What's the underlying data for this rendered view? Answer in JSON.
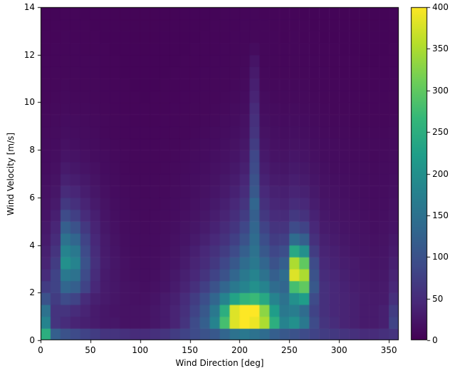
{
  "figure": {
    "background": "#ffffff",
    "axes_color": "#000000"
  },
  "chart_data": {
    "type": "heatmap",
    "title": "",
    "xlabel": "Wind Direction [deg]",
    "ylabel": "Wind Velocity [m/s]",
    "x_range": [
      0,
      360
    ],
    "y_range": [
      0,
      14
    ],
    "x_bin_size_deg": 10,
    "y_bin_size_ms": 0.5,
    "x_tick_labels": [
      0,
      50,
      100,
      150,
      200,
      250,
      300,
      350
    ],
    "y_tick_labels": [
      0,
      2,
      4,
      6,
      8,
      10,
      12,
      14
    ],
    "grid": false,
    "colormap": "viridis",
    "colormap_stops": [
      "#440154",
      "#482878",
      "#3e4a89",
      "#31688e",
      "#26828e",
      "#1f9e89",
      "#35b779",
      "#6ece58",
      "#b5de2b",
      "#fde725"
    ],
    "colorbar": {
      "position": "right",
      "range": [
        0,
        400
      ],
      "ticks": [
        0,
        50,
        100,
        150,
        200,
        250,
        300,
        350,
        400
      ]
    },
    "values_rows_bottom_to_top": [
      [
        250,
        120,
        100,
        90,
        80,
        70,
        60,
        60,
        55,
        50,
        50,
        55,
        60,
        70,
        80,
        90,
        100,
        110,
        130,
        150,
        160,
        150,
        140,
        120,
        110,
        100,
        90,
        80,
        70,
        65,
        60,
        55,
        50,
        50,
        55,
        60
      ],
      [
        180,
        60,
        50,
        40,
        35,
        30,
        25,
        25,
        20,
        20,
        20,
        25,
        30,
        40,
        60,
        90,
        120,
        180,
        280,
        380,
        400,
        390,
        350,
        250,
        180,
        200,
        160,
        90,
        60,
        50,
        40,
        35,
        30,
        30,
        35,
        80
      ],
      [
        150,
        60,
        60,
        50,
        40,
        30,
        25,
        22,
        20,
        20,
        20,
        25,
        30,
        40,
        55,
        80,
        110,
        160,
        250,
        380,
        400,
        400,
        330,
        220,
        160,
        170,
        140,
        80,
        55,
        45,
        40,
        35,
        30,
        30,
        35,
        70
      ],
      [
        100,
        70,
        90,
        80,
        50,
        35,
        28,
        24,
        20,
        18,
        18,
        22,
        28,
        35,
        50,
        70,
        95,
        130,
        180,
        230,
        260,
        270,
        240,
        180,
        150,
        200,
        220,
        90,
        55,
        45,
        40,
        35,
        30,
        28,
        30,
        55
      ],
      [
        70,
        80,
        130,
        120,
        80,
        45,
        30,
        25,
        20,
        18,
        16,
        18,
        22,
        30,
        40,
        55,
        75,
        100,
        130,
        160,
        180,
        200,
        180,
        140,
        130,
        280,
        300,
        110,
        55,
        45,
        38,
        32,
        28,
        26,
        28,
        45
      ],
      [
        50,
        80,
        160,
        150,
        90,
        50,
        30,
        24,
        18,
        16,
        15,
        16,
        20,
        26,
        35,
        45,
        60,
        80,
        100,
        130,
        160,
        180,
        150,
        120,
        140,
        380,
        350,
        100,
        50,
        42,
        35,
        30,
        26,
        24,
        26,
        40
      ],
      [
        40,
        70,
        200,
        180,
        100,
        55,
        32,
        24,
        18,
        15,
        14,
        15,
        18,
        22,
        30,
        40,
        50,
        65,
        85,
        110,
        140,
        160,
        130,
        100,
        120,
        350,
        300,
        90,
        45,
        38,
        32,
        28,
        24,
        22,
        24,
        35
      ],
      [
        35,
        60,
        180,
        160,
        90,
        50,
        30,
        22,
        16,
        14,
        13,
        14,
        16,
        20,
        26,
        34,
        44,
        56,
        70,
        90,
        120,
        150,
        110,
        85,
        95,
        240,
        200,
        70,
        40,
        34,
        28,
        24,
        22,
        20,
        22,
        30
      ],
      [
        30,
        50,
        150,
        130,
        80,
        45,
        28,
        20,
        15,
        13,
        12,
        13,
        15,
        18,
        22,
        28,
        36,
        46,
        58,
        75,
        100,
        140,
        95,
        70,
        75,
        140,
        120,
        55,
        35,
        30,
        25,
        22,
        20,
        18,
        20,
        26
      ],
      [
        26,
        42,
        120,
        100,
        65,
        40,
        25,
        18,
        14,
        12,
        11,
        12,
        14,
        16,
        20,
        24,
        30,
        38,
        48,
        62,
        85,
        130,
        80,
        60,
        60,
        90,
        80,
        45,
        30,
        26,
        22,
        20,
        18,
        16,
        18,
        22
      ],
      [
        22,
        34,
        90,
        75,
        50,
        34,
        22,
        16,
        13,
        11,
        10,
        11,
        12,
        14,
        17,
        20,
        25,
        32,
        40,
        52,
        70,
        120,
        65,
        50,
        48,
        65,
        58,
        38,
        26,
        22,
        20,
        18,
        16,
        15,
        16,
        20
      ],
      [
        20,
        28,
        65,
        55,
        40,
        28,
        20,
        15,
        12,
        10,
        10,
        10,
        11,
        13,
        15,
        18,
        22,
        27,
        34,
        44,
        60,
        130,
        55,
        42,
        40,
        50,
        45,
        32,
        23,
        20,
        18,
        16,
        15,
        14,
        15,
        18
      ],
      [
        18,
        24,
        48,
        42,
        32,
        24,
        17,
        13,
        11,
        10,
        9,
        10,
        10,
        12,
        14,
        16,
        19,
        23,
        29,
        37,
        50,
        110,
        46,
        36,
        34,
        40,
        36,
        27,
        20,
        18,
        16,
        15,
        14,
        13,
        14,
        16
      ],
      [
        16,
        20,
        36,
        32,
        26,
        20,
        15,
        12,
        10,
        9,
        9,
        9,
        10,
        11,
        13,
        15,
        17,
        20,
        25,
        31,
        42,
        100,
        38,
        30,
        28,
        33,
        30,
        23,
        18,
        16,
        15,
        14,
        13,
        12,
        13,
        15
      ],
      [
        14,
        17,
        28,
        25,
        21,
        17,
        13,
        11,
        9,
        8,
        8,
        8,
        9,
        10,
        11,
        13,
        15,
        18,
        21,
        26,
        35,
        90,
        32,
        25,
        24,
        27,
        25,
        20,
        16,
        14,
        13,
        12,
        12,
        11,
        12,
        13
      ],
      [
        13,
        15,
        22,
        20,
        17,
        14,
        12,
        10,
        9,
        8,
        8,
        8,
        8,
        9,
        10,
        12,
        13,
        16,
        18,
        22,
        30,
        85,
        27,
        21,
        20,
        23,
        21,
        17,
        14,
        13,
        12,
        11,
        11,
        10,
        11,
        12
      ],
      [
        12,
        13,
        18,
        16,
        14,
        12,
        10,
        9,
        8,
        7,
        7,
        7,
        8,
        8,
        9,
        10,
        12,
        13,
        16,
        19,
        25,
        70,
        23,
        18,
        17,
        19,
        18,
        15,
        13,
        12,
        11,
        10,
        10,
        10,
        10,
        11
      ],
      [
        11,
        12,
        15,
        14,
        12,
        11,
        9,
        8,
        7,
        7,
        7,
        7,
        7,
        8,
        8,
        9,
        10,
        12,
        14,
        16,
        21,
        60,
        19,
        16,
        15,
        16,
        15,
        13,
        11,
        10,
        10,
        9,
        9,
        9,
        9,
        10
      ],
      [
        10,
        11,
        13,
        12,
        11,
        10,
        9,
        8,
        7,
        6,
        6,
        6,
        7,
        7,
        8,
        8,
        9,
        10,
        12,
        14,
        18,
        55,
        16,
        14,
        13,
        14,
        13,
        11,
        10,
        9,
        9,
        8,
        8,
        8,
        8,
        9
      ],
      [
        9,
        10,
        11,
        10,
        10,
        9,
        8,
        7,
        6,
        6,
        6,
        6,
        6,
        7,
        7,
        8,
        8,
        9,
        10,
        12,
        15,
        48,
        14,
        12,
        11,
        12,
        11,
        10,
        9,
        8,
        8,
        8,
        7,
        7,
        8,
        8
      ],
      [
        8,
        9,
        10,
        9,
        9,
        8,
        7,
        7,
        6,
        6,
        5,
        6,
        6,
        6,
        7,
        7,
        8,
        8,
        9,
        10,
        13,
        40,
        12,
        10,
        10,
        10,
        10,
        9,
        8,
        8,
        7,
        7,
        7,
        7,
        7,
        8
      ],
      [
        8,
        8,
        9,
        8,
        8,
        8,
        7,
        6,
        6,
        5,
        5,
        5,
        6,
        6,
        6,
        7,
        7,
        8,
        8,
        9,
        11,
        34,
        10,
        9,
        9,
        9,
        9,
        8,
        7,
        7,
        7,
        6,
        6,
        6,
        7,
        7
      ],
      [
        7,
        8,
        8,
        8,
        7,
        7,
        6,
        6,
        5,
        5,
        5,
        5,
        5,
        6,
        6,
        6,
        7,
        7,
        8,
        8,
        10,
        28,
        9,
        8,
        8,
        8,
        8,
        7,
        7,
        6,
        6,
        6,
        6,
        6,
        6,
        7
      ],
      [
        7,
        7,
        8,
        7,
        7,
        7,
        6,
        6,
        5,
        5,
        5,
        5,
        5,
        5,
        6,
        6,
        6,
        7,
        7,
        8,
        9,
        22,
        8,
        8,
        7,
        8,
        7,
        7,
        6,
        6,
        6,
        6,
        5,
        5,
        6,
        6
      ],
      [
        6,
        7,
        7,
        7,
        6,
        6,
        6,
        5,
        5,
        5,
        4,
        5,
        5,
        5,
        5,
        6,
        6,
        6,
        7,
        7,
        8,
        12,
        8,
        7,
        7,
        7,
        7,
        6,
        6,
        6,
        5,
        5,
        5,
        5,
        5,
        6
      ],
      [
        6,
        6,
        7,
        6,
        6,
        6,
        5,
        5,
        5,
        4,
        4,
        4,
        5,
        5,
        5,
        5,
        6,
        6,
        6,
        7,
        7,
        8,
        7,
        7,
        6,
        7,
        6,
        6,
        5,
        5,
        5,
        5,
        5,
        5,
        5,
        5
      ],
      [
        5,
        6,
        6,
        6,
        6,
        5,
        5,
        5,
        4,
        4,
        4,
        4,
        4,
        5,
        5,
        5,
        5,
        6,
        6,
        6,
        7,
        7,
        7,
        6,
        6,
        6,
        6,
        5,
        5,
        5,
        5,
        4,
        4,
        4,
        5,
        5
      ],
      [
        5,
        5,
        6,
        6,
        5,
        5,
        5,
        4,
        4,
        4,
        4,
        4,
        4,
        4,
        5,
        5,
        5,
        5,
        6,
        6,
        6,
        7,
        6,
        6,
        6,
        6,
        5,
        5,
        5,
        5,
        4,
        4,
        4,
        4,
        4,
        5
      ]
    ]
  }
}
